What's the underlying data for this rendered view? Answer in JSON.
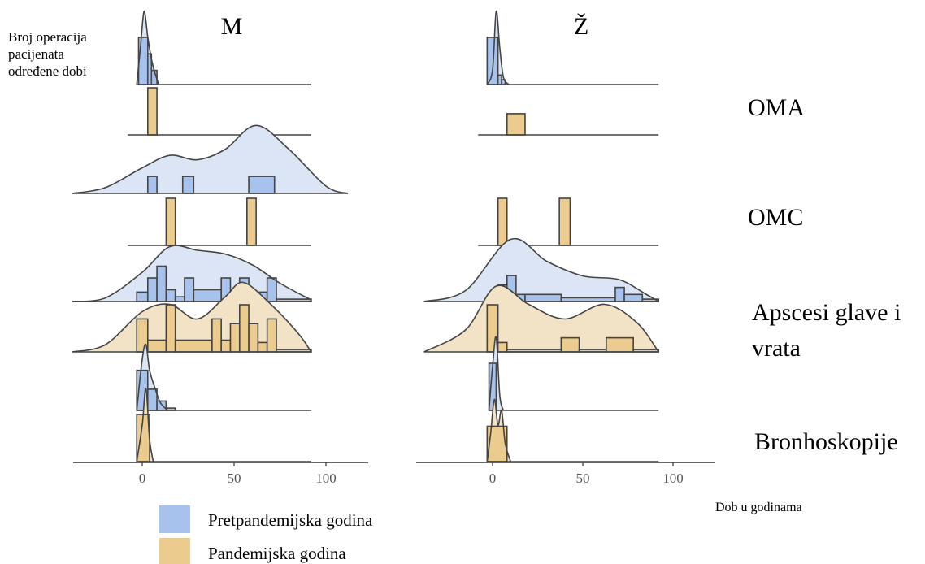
{
  "colors": {
    "pre": "#a7c2ec",
    "pre_fill": "#dbe5f5",
    "pan": "#eccb8e",
    "pan_fill": "#f3e3c6",
    "line": "#444444",
    "axis": "#333333"
  },
  "chart_data": {
    "type": "area",
    "panels": [
      "M",
      "Ž"
    ],
    "ylabel": "Broj operacija pacijenata određene dobi",
    "xlabel": "Dob u godinama",
    "x_ticks": [
      0,
      50,
      100
    ],
    "xlim_per_panel": [
      [
        -38,
        122
      ],
      [
        -38,
        122
      ]
    ],
    "groups": [
      {
        "label_lines": [
          "OMA"
        ],
        "rows": {
          "pre": {
            "M": {
              "bins": [
                [
                  -2,
                  3,
                  1.0
                ],
                [
                  3,
                  5,
                  0.65
                ],
                [
                  5,
                  8,
                  0.3
                ]
              ],
              "density": [
                [
                  -3,
                  0
                ],
                [
                  -1,
                  0.5
                ],
                [
                  1,
                  1.0
                ],
                [
                  3,
                  0.65
                ],
                [
                  5,
                  0.35
                ],
                [
                  7,
                  0.15
                ],
                [
                  9,
                  0
                ]
              ],
              "range": [
                -3,
                92
              ]
            },
            "Ž": {
              "bins": [
                [
                  -3,
                  3,
                  1.0
                ],
                [
                  3,
                  5,
                  0.2
                ],
                [
                  5,
                  7,
                  0.1
                ]
              ],
              "density": [
                [
                  -3,
                  0
                ],
                [
                  0,
                  0.2
                ],
                [
                  2,
                  1.0
                ],
                [
                  4,
                  0.5
                ],
                [
                  6,
                  0.1
                ],
                [
                  9,
                  0
                ]
              ],
              "range": [
                -3,
                92
              ]
            }
          },
          "pan": {
            "M": {
              "bins": [
                [
                  3,
                  8,
                  1.0
                ]
              ],
              "density": null,
              "range": [
                -8,
                92
              ]
            },
            "Ž": {
              "bins": [
                [
                  8,
                  18,
                  0.45
                ]
              ],
              "density": null,
              "range": [
                -8,
                92
              ]
            }
          }
        }
      },
      {
        "label_lines": [
          "OMC"
        ],
        "rows": {
          "pre": {
            "M": {
              "bins": [
                [
                  3,
                  8,
                  0.36
                ],
                [
                  22,
                  28,
                  0.36
                ],
                [
                  58,
                  72,
                  0.36
                ]
              ],
              "density": [
                [
                  -38,
                  0
                ],
                [
                  -20,
                  0.08
                ],
                [
                  0,
                  0.35
                ],
                [
                  15,
                  0.52
                ],
                [
                  30,
                  0.46
                ],
                [
                  45,
                  0.6
                ],
                [
                  62,
                  0.93
                ],
                [
                  80,
                  0.6
                ],
                [
                  100,
                  0.1
                ],
                [
                  112,
                  0
                ]
              ],
              "range": [
                -38,
                112
              ]
            },
            "Ž": {
              "bins": [],
              "density": null,
              "range": null
            }
          },
          "pan": {
            "M": {
              "bins": [
                [
                  13,
                  18,
                  1.0
                ],
                [
                  57,
                  62,
                  1.0
                ]
              ],
              "density": null,
              "range": [
                -8,
                92
              ]
            },
            "Ž": {
              "bins": [
                [
                  3,
                  8,
                  1.0
                ],
                [
                  37,
                  43,
                  1.0
                ]
              ],
              "density": null,
              "range": [
                -8,
                92
              ]
            }
          }
        }
      },
      {
        "label_lines": [
          "Apscesi glave i",
          "vrata"
        ],
        "rows": {
          "pre": {
            "M": {
              "bins": [
                [
                  -3,
                  3,
                  0.2
                ],
                [
                  3,
                  8,
                  0.5
                ],
                [
                  8,
                  13,
                  0.75
                ],
                [
                  13,
                  18,
                  0.25
                ],
                [
                  18,
                  23,
                  0.1
                ],
                [
                  23,
                  28,
                  0.5
                ],
                [
                  28,
                  43,
                  0.25
                ],
                [
                  43,
                  48,
                  0.5
                ],
                [
                  48,
                  53,
                  0.2
                ],
                [
                  53,
                  58,
                  0.5
                ],
                [
                  58,
                  68,
                  0.2
                ],
                [
                  68,
                  73,
                  0.5
                ],
                [
                  73,
                  92,
                  0.05
                ]
              ],
              "density": [
                [
                  -38,
                  0
                ],
                [
                  -20,
                  0.05
                ],
                [
                  0,
                  0.4
                ],
                [
                  15,
                  0.75
                ],
                [
                  30,
                  0.7
                ],
                [
                  45,
                  0.65
                ],
                [
                  60,
                  0.5
                ],
                [
                  75,
                  0.25
                ],
                [
                  92,
                  0.02
                ]
              ],
              "range": [
                -38,
                92
              ]
            },
            "Ž": {
              "bins": [
                [
                  -3,
                  3,
                  0.1
                ],
                [
                  3,
                  8,
                  0.35
                ],
                [
                  8,
                  13,
                  0.55
                ],
                [
                  13,
                  18,
                  0.15
                ],
                [
                  18,
                  38,
                  0.15
                ],
                [
                  38,
                  68,
                  0.08
                ],
                [
                  68,
                  73,
                  0.3
                ],
                [
                  73,
                  83,
                  0.15
                ],
                [
                  83,
                  92,
                  0.05
                ]
              ],
              "density": [
                [
                  -38,
                  0
                ],
                [
                  -15,
                  0.15
                ],
                [
                  10,
                  0.85
                ],
                [
                  30,
                  0.55
                ],
                [
                  50,
                  0.35
                ],
                [
                  70,
                  0.3
                ],
                [
                  85,
                  0.1
                ],
                [
                  92,
                  0
                ]
              ],
              "range": [
                -38,
                92
              ]
            }
          },
          "pan": {
            "M": {
              "bins": [
                [
                  -3,
                  3,
                  0.7
                ],
                [
                  3,
                  13,
                  0.25
                ],
                [
                  13,
                  18,
                  1.0
                ],
                [
                  18,
                  38,
                  0.25
                ],
                [
                  38,
                  43,
                  0.7
                ],
                [
                  43,
                  48,
                  0.25
                ],
                [
                  48,
                  53,
                  0.6
                ],
                [
                  53,
                  58,
                  1.0
                ],
                [
                  58,
                  63,
                  0.6
                ],
                [
                  63,
                  68,
                  0.2
                ],
                [
                  68,
                  73,
                  0.7
                ],
                [
                  73,
                  92,
                  0.05
                ]
              ],
              "density": [
                [
                  -38,
                  0
                ],
                [
                  -20,
                  0.1
                ],
                [
                  0,
                  0.55
                ],
                [
                  15,
                  0.65
                ],
                [
                  30,
                  0.45
                ],
                [
                  45,
                  0.75
                ],
                [
                  55,
                  0.95
                ],
                [
                  70,
                  0.65
                ],
                [
                  85,
                  0.25
                ],
                [
                  92,
                  0
                ]
              ],
              "range": [
                -38,
                92
              ]
            },
            "Ž": {
              "bins": [
                [
                  -3,
                  3,
                  1.0
                ],
                [
                  3,
                  8,
                  0.2
                ],
                [
                  8,
                  38,
                  0.05
                ],
                [
                  38,
                  48,
                  0.3
                ],
                [
                  48,
                  63,
                  0.05
                ],
                [
                  63,
                  78,
                  0.3
                ],
                [
                  78,
                  92,
                  0.05
                ]
              ],
              "density": [
                [
                  -38,
                  0
                ],
                [
                  -15,
                  0.3
                ],
                [
                  2,
                  0.9
                ],
                [
                  20,
                  0.65
                ],
                [
                  40,
                  0.45
                ],
                [
                  62,
                  0.65
                ],
                [
                  80,
                  0.4
                ],
                [
                  92,
                  0
                ]
              ],
              "range": [
                -38,
                92
              ]
            }
          }
        }
      },
      {
        "label_lines": [
          "Bronhoskopije"
        ],
        "rows": {
          "pre": {
            "M": {
              "bins": [
                [
                  -3,
                  3,
                  0.85
                ],
                [
                  3,
                  8,
                  0.45
                ],
                [
                  8,
                  13,
                  0.2
                ],
                [
                  13,
                  18,
                  0.05
                ]
              ],
              "density": [
                [
                  -3,
                  0
                ],
                [
                  0,
                  0.7
                ],
                [
                  2,
                  0.9
                ],
                [
                  4,
                  0.55
                ],
                [
                  7,
                  0.3
                ],
                [
                  10,
                  0.1
                ],
                [
                  14,
                  0
                ]
              ],
              "range": [
                -3,
                92
              ]
            },
            "Ž": {
              "bins": [
                [
                  -2,
                  2,
                  1.0
                ]
              ],
              "density": [
                [
                  -2,
                  0
                ],
                [
                  0,
                  0.6
                ],
                [
                  2,
                  1.0
                ],
                [
                  4,
                  0.2
                ],
                [
                  6,
                  0
                ]
              ],
              "range": [
                -2,
                92
              ]
            }
          },
          "pan": {
            "M": {
              "bins": [
                [
                  -3,
                  4,
                  1.0
                ]
              ],
              "density": [
                [
                  -3,
                  0
                ],
                [
                  0,
                  0.5
                ],
                [
                  2,
                  1.0
                ],
                [
                  4,
                  0.3
                ],
                [
                  6,
                  0
                ]
              ],
              "range": [
                -3,
                92
              ]
            },
            "Ž": {
              "bins": [
                [
                  -3,
                  8,
                  0.75
                ]
              ],
              "density": [
                [
                  -3,
                  0
                ],
                [
                  -1,
                  0.4
                ],
                [
                  1,
                  0.85
                ],
                [
                  3,
                  0.5
                ],
                [
                  5,
                  0.7
                ],
                [
                  7,
                  0.25
                ],
                [
                  10,
                  0
                ]
              ],
              "range": [
                -3,
                92
              ]
            }
          }
        }
      }
    ],
    "legend": [
      {
        "key": "pre",
        "label": "Pretpandemijska godina"
      },
      {
        "key": "pan",
        "label": "Pandemijska godina"
      }
    ]
  }
}
